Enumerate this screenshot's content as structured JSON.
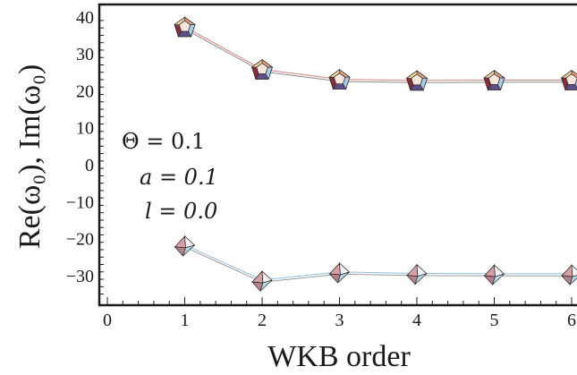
{
  "chart_data": {
    "type": "line",
    "title": "",
    "xlabel": "WKB order",
    "ylabel": "Re(ω₀), Im(ω₀)",
    "xlim": [
      0,
      6
    ],
    "ylim": [
      -35,
      40
    ],
    "x_ticks": [
      "0",
      "1",
      "2",
      "3",
      "4",
      "5",
      "6"
    ],
    "y_ticks": [
      "40",
      "30",
      "20",
      "10",
      "0",
      "-10",
      "-20",
      "-30"
    ],
    "grid": false,
    "legend": "none",
    "annotations": [
      "Θ = 0.1",
      "a = 0.1",
      "l = 0.0"
    ],
    "series": [
      {
        "x": [
          1,
          2,
          3,
          4,
          5,
          6
        ],
        "values": [
          37,
          25.5,
          22.8,
          22.5,
          22.6,
          22.6
        ],
        "marker": "dodecahedron",
        "color": "#e0a0a0"
      },
      {
        "x": [
          1,
          2,
          3,
          4,
          5,
          6
        ],
        "values": [
          -22,
          -31.5,
          -29.3,
          -29.7,
          -29.8,
          -29.8
        ],
        "marker": "octahedron",
        "color": "#a8cce8"
      }
    ]
  }
}
